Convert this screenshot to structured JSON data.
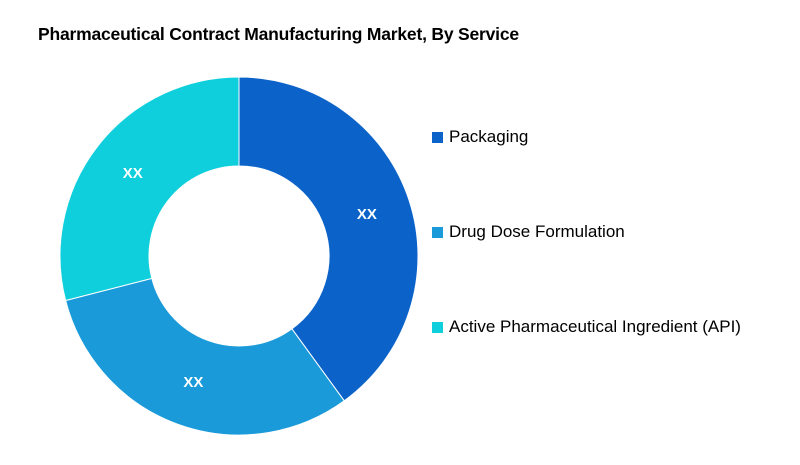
{
  "chart_data": {
    "type": "pie",
    "title": "Pharmaceutical Contract Manufacturing Market, By Service",
    "donut": true,
    "legend_position": "right",
    "categories": [
      "Packaging",
      "Drug Dose Formulation",
      "Active Pharmaceutical Ingredient (API)"
    ],
    "values": [
      40,
      31,
      29
    ],
    "data_labels": [
      "XX",
      "XX",
      "XX"
    ],
    "colors": [
      "#0b63c9",
      "#1a9ad9",
      "#0fcfdc"
    ]
  }
}
